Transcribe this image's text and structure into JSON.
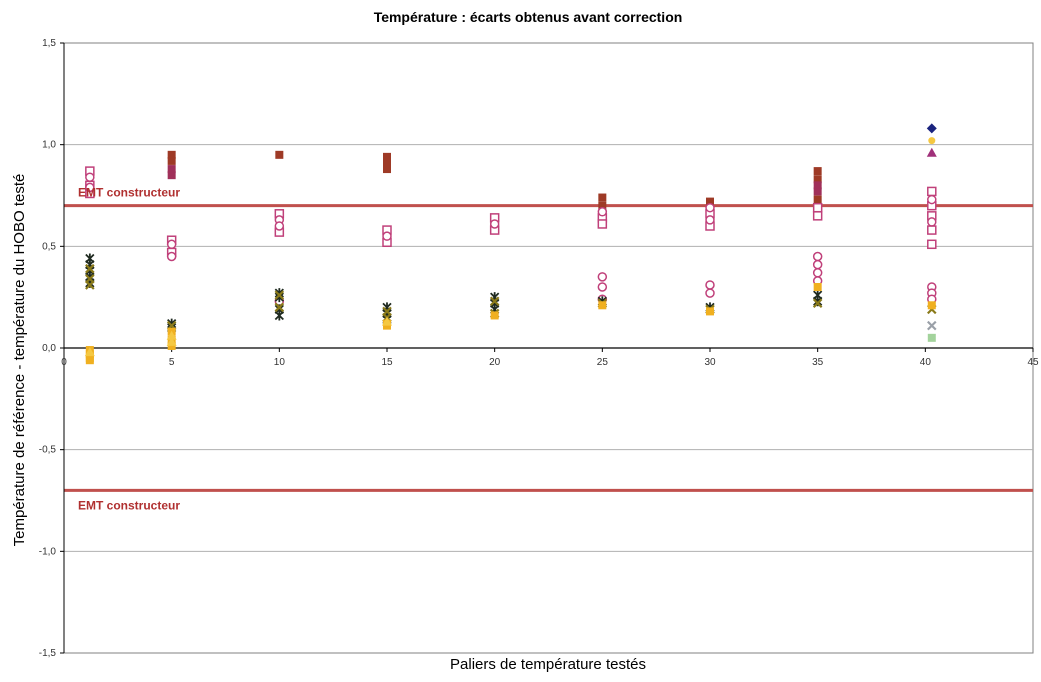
{
  "chart_data": {
    "type": "scatter",
    "title": "Température : écarts obtenus avant correction",
    "xlabel": "Paliers de température testés",
    "ylabel": "Température de référence - température du HOBO testé",
    "xlim": [
      0,
      45
    ],
    "ylim": [
      -1.5,
      1.5
    ],
    "x_ticks": [
      {
        "value": 0,
        "label": "0"
      },
      {
        "value": 5,
        "label": "5"
      },
      {
        "value": 10,
        "label": "10"
      },
      {
        "value": 15,
        "label": "15"
      },
      {
        "value": 20,
        "label": "20"
      },
      {
        "value": 25,
        "label": "25"
      },
      {
        "value": 30,
        "label": "30"
      },
      {
        "value": 35,
        "label": "35"
      },
      {
        "value": 40,
        "label": "40"
      },
      {
        "value": 45,
        "label": "45"
      }
    ],
    "y_ticks": [
      {
        "value": -1.5,
        "label": "-1,5"
      },
      {
        "value": -1.0,
        "label": "-1,0"
      },
      {
        "value": -0.5,
        "label": "-0,5"
      },
      {
        "value": 0.0,
        "label": "0,0"
      },
      {
        "value": 0.5,
        "label": "0,5"
      },
      {
        "value": 1.0,
        "label": "1,0"
      },
      {
        "value": 1.5,
        "label": "1,5"
      }
    ],
    "grid": "horizontal",
    "reference_lines": [
      {
        "value": 0.7,
        "label": "EMT constructeur",
        "color": "#c0504d"
      },
      {
        "value": -0.7,
        "label": "EMT constructeur",
        "color": "#c0504d"
      }
    ],
    "series": [
      {
        "marker": "square",
        "color": "#9e3a26",
        "points": [
          [
            5,
            0.95
          ],
          [
            5,
            0.92
          ],
          [
            10,
            0.95
          ],
          [
            15,
            0.94
          ],
          [
            15,
            0.91
          ],
          [
            15,
            0.88
          ],
          [
            25,
            0.74
          ],
          [
            25,
            0.7
          ],
          [
            30,
            0.72
          ],
          [
            30,
            0.7
          ],
          [
            35,
            0.87
          ],
          [
            35,
            0.83
          ],
          [
            35,
            0.73
          ]
        ]
      },
      {
        "marker": "square",
        "color": "#a0305a",
        "points": [
          [
            5,
            0.88
          ],
          [
            5,
            0.85
          ],
          [
            25,
            0.62
          ],
          [
            35,
            0.8
          ],
          [
            35,
            0.77
          ]
        ]
      },
      {
        "marker": "open-square",
        "color": "#c0407a",
        "points": [
          [
            1.2,
            0.87
          ],
          [
            1.2,
            0.8
          ],
          [
            1.2,
            0.76
          ],
          [
            5,
            0.53
          ],
          [
            5,
            0.47
          ],
          [
            10,
            0.66
          ],
          [
            10,
            0.57
          ],
          [
            15,
            0.58
          ],
          [
            15,
            0.52
          ],
          [
            20,
            0.64
          ],
          [
            20,
            0.58
          ],
          [
            25,
            0.64
          ],
          [
            25,
            0.61
          ],
          [
            30,
            0.6
          ],
          [
            30,
            0.66
          ],
          [
            35,
            0.65
          ],
          [
            35,
            0.69
          ],
          [
            40.3,
            0.77
          ],
          [
            40.3,
            0.7
          ],
          [
            40.3,
            0.65
          ],
          [
            40.3,
            0.58
          ],
          [
            40.3,
            0.51
          ]
        ]
      },
      {
        "marker": "open-circle",
        "color": "#c0407a",
        "points": [
          [
            1.2,
            0.84
          ],
          [
            1.2,
            0.79
          ],
          [
            5,
            0.51
          ],
          [
            5,
            0.45
          ],
          [
            10,
            0.63
          ],
          [
            10,
            0.6
          ],
          [
            15,
            0.55
          ],
          [
            20,
            0.61
          ],
          [
            25,
            0.67
          ],
          [
            30,
            0.69
          ],
          [
            30,
            0.63
          ],
          [
            40.3,
            0.73
          ],
          [
            40.3,
            0.62
          ],
          [
            25,
            0.35
          ],
          [
            25,
            0.3
          ],
          [
            25,
            0.24
          ],
          [
            30,
            0.31
          ],
          [
            30,
            0.27
          ],
          [
            35,
            0.45
          ],
          [
            35,
            0.41
          ],
          [
            35,
            0.37
          ],
          [
            35,
            0.33
          ],
          [
            40.3,
            0.3
          ],
          [
            40.3,
            0.27
          ],
          [
            40.3,
            0.24
          ],
          [
            10,
            0.23
          ]
        ]
      },
      {
        "marker": "star",
        "color": "#1f2a20",
        "points": [
          [
            1.2,
            0.44
          ],
          [
            1.2,
            0.41
          ],
          [
            1.2,
            0.38
          ],
          [
            1.2,
            0.35
          ],
          [
            1.2,
            0.32
          ],
          [
            5,
            0.12
          ],
          [
            5,
            0.1
          ],
          [
            10,
            0.27
          ],
          [
            10,
            0.25
          ],
          [
            10,
            0.19
          ],
          [
            10,
            0.16
          ],
          [
            15,
            0.2
          ],
          [
            15,
            0.17
          ],
          [
            15,
            0.14
          ],
          [
            20,
            0.25
          ],
          [
            20,
            0.22
          ],
          [
            20,
            0.19
          ],
          [
            25,
            0.23
          ],
          [
            30,
            0.2
          ],
          [
            35,
            0.26
          ],
          [
            35,
            0.23
          ]
        ]
      },
      {
        "marker": "x",
        "color": "#8a7a1a",
        "points": [
          [
            1.2,
            0.39
          ],
          [
            1.2,
            0.34
          ],
          [
            1.2,
            0.31
          ],
          [
            5,
            0.11
          ],
          [
            10,
            0.26
          ],
          [
            10,
            0.2
          ],
          [
            15,
            0.18
          ],
          [
            15,
            0.15
          ],
          [
            20,
            0.23
          ],
          [
            20,
            0.17
          ],
          [
            25,
            0.22
          ],
          [
            30,
            0.19
          ],
          [
            35,
            0.22
          ],
          [
            40.3,
            0.19
          ]
        ]
      },
      {
        "marker": "square",
        "color": "#f0b020",
        "points": [
          [
            1.2,
            -0.01
          ],
          [
            1.2,
            -0.03
          ],
          [
            1.2,
            -0.05
          ],
          [
            1.2,
            -0.06
          ],
          [
            5,
            0.04
          ],
          [
            5,
            0.01
          ],
          [
            5,
            0.08
          ],
          [
            15,
            0.12
          ],
          [
            15,
            0.11
          ],
          [
            20,
            0.16
          ],
          [
            25,
            0.21
          ],
          [
            30,
            0.18
          ],
          [
            35,
            0.3
          ],
          [
            40.3,
            0.21
          ]
        ]
      },
      {
        "marker": "triangle",
        "color": "#f5c842",
        "points": [
          [
            1.2,
            -0.02
          ],
          [
            5,
            0.06
          ],
          [
            5,
            0.03
          ],
          [
            15,
            0.13
          ]
        ]
      },
      {
        "marker": "square",
        "color": "#a3d39c",
        "points": [
          [
            40.3,
            0.05
          ]
        ]
      },
      {
        "marker": "x",
        "color": "#9aa0a8",
        "points": [
          [
            40.3,
            0.11
          ]
        ]
      },
      {
        "marker": "circle",
        "color": "#f5c842",
        "points": [
          [
            40.3,
            1.02
          ]
        ]
      },
      {
        "marker": "diamond",
        "color": "#1a237e",
        "points": [
          [
            40.3,
            1.08
          ]
        ]
      },
      {
        "marker": "triangle",
        "color": "#a0307a",
        "points": [
          [
            40.3,
            0.96
          ]
        ]
      }
    ]
  }
}
